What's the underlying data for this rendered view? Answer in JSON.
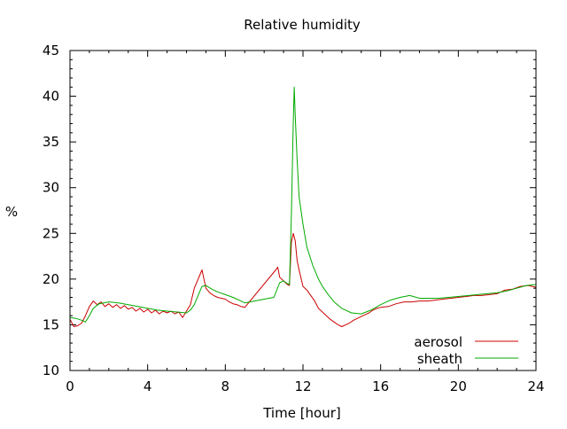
{
  "chart_data": {
    "type": "line",
    "title": "Relative humidity",
    "xlabel": "Time [hour]",
    "ylabel": "%",
    "xlim": [
      0,
      24
    ],
    "ylim": [
      10,
      45
    ],
    "x_ticks": [
      0,
      4,
      8,
      12,
      16,
      20,
      24
    ],
    "y_ticks": [
      10,
      15,
      20,
      25,
      30,
      35,
      40,
      45
    ],
    "x_minor_step": 1,
    "y_minor_step": 1,
    "grid": false,
    "legend_position": "bottom-right",
    "series": [
      {
        "name": "aerosol",
        "color": "#cc0000",
        "x": [
          0,
          0.2,
          0.4,
          0.6,
          0.8,
          1.0,
          1.2,
          1.4,
          1.6,
          1.8,
          2.0,
          2.2,
          2.4,
          2.6,
          2.8,
          3.0,
          3.2,
          3.4,
          3.6,
          3.8,
          4.0,
          4.2,
          4.4,
          4.6,
          4.8,
          5.0,
          5.2,
          5.4,
          5.6,
          5.8,
          6.0,
          6.2,
          6.4,
          6.6,
          6.8,
          7.0,
          7.2,
          7.4,
          7.6,
          7.8,
          8.0,
          8.2,
          8.4,
          8.6,
          8.8,
          9.0,
          10.6,
          10.7,
          10.8,
          10.9,
          11.0,
          11.1,
          11.2,
          11.3,
          11.4,
          11.5,
          11.6,
          11.7,
          11.8,
          12.0,
          12.2,
          12.4,
          12.6,
          12.8,
          13.0,
          13.2,
          13.4,
          13.6,
          13.8,
          14.0,
          14.2,
          14.4,
          14.6,
          14.8,
          15.0,
          15.2,
          15.4,
          15.6,
          15.8,
          16.0,
          16.4,
          16.8,
          17.2,
          17.6,
          18.0,
          18.4,
          18.8,
          19.2,
          19.6,
          20.0,
          20.4,
          20.8,
          21.2,
          21.6,
          22.0,
          22.4,
          22.8,
          23.2,
          23.6,
          24.0
        ],
        "y": [
          15.6,
          14.8,
          14.9,
          15.2,
          16.0,
          17.0,
          17.6,
          17.2,
          17.5,
          17.0,
          17.3,
          16.9,
          17.2,
          16.8,
          17.1,
          16.7,
          16.9,
          16.5,
          16.8,
          16.4,
          16.7,
          16.3,
          16.6,
          16.2,
          16.5,
          16.3,
          16.5,
          16.2,
          16.4,
          15.8,
          16.5,
          17.2,
          19.0,
          20.0,
          21.0,
          19.0,
          18.5,
          18.2,
          18.0,
          17.9,
          17.8,
          17.5,
          17.3,
          17.2,
          17.0,
          16.9,
          21.0,
          21.3,
          20.2,
          20.0,
          19.8,
          19.6,
          19.4,
          19.3,
          24.0,
          25.0,
          24.2,
          22.0,
          21.0,
          19.2,
          18.8,
          18.2,
          17.6,
          16.8,
          16.4,
          16.0,
          15.6,
          15.3,
          15.0,
          14.8,
          15.0,
          15.2,
          15.5,
          15.7,
          15.9,
          16.1,
          16.3,
          16.6,
          16.8,
          16.9,
          17.0,
          17.3,
          17.5,
          17.5,
          17.6,
          17.6,
          17.7,
          17.8,
          17.9,
          18.0,
          18.1,
          18.2,
          18.2,
          18.3,
          18.4,
          18.8,
          18.9,
          19.2,
          19.3,
          19.1
        ]
      },
      {
        "name": "sheath",
        "color": "#00aa00",
        "x": [
          0,
          0.3,
          0.6,
          0.8,
          1.0,
          1.2,
          1.5,
          2.0,
          2.5,
          3.0,
          3.5,
          4.0,
          4.5,
          5.0,
          5.5,
          6.0,
          6.2,
          6.4,
          6.6,
          6.8,
          7.0,
          7.3,
          7.6,
          8.0,
          8.4,
          8.8,
          9.0,
          9.5,
          10.0,
          10.5,
          10.8,
          11.0,
          11.2,
          11.3,
          11.4,
          11.5,
          11.55,
          11.6,
          11.7,
          11.8,
          12.0,
          12.2,
          12.5,
          12.8,
          13.0,
          13.3,
          13.6,
          14.0,
          14.5,
          15.0,
          15.5,
          16.0,
          16.5,
          17.0,
          17.5,
          18.0,
          19.0,
          20.0,
          21.0,
          22.0,
          22.5,
          23.0,
          23.5,
          24.0
        ],
        "y": [
          15.8,
          15.7,
          15.5,
          15.3,
          16.0,
          16.8,
          17.3,
          17.5,
          17.4,
          17.2,
          17.0,
          16.8,
          16.6,
          16.5,
          16.4,
          16.3,
          16.6,
          17.2,
          18.2,
          19.2,
          19.3,
          18.9,
          18.6,
          18.3,
          18.0,
          17.6,
          17.4,
          17.6,
          17.8,
          18.0,
          19.6,
          19.8,
          19.5,
          19.4,
          27.0,
          37.0,
          41.0,
          38.0,
          33.0,
          29.0,
          26.0,
          23.5,
          21.5,
          20.0,
          19.2,
          18.3,
          17.5,
          16.8,
          16.3,
          16.2,
          16.6,
          17.2,
          17.7,
          18.0,
          18.2,
          17.9,
          17.9,
          18.1,
          18.3,
          18.5,
          18.7,
          19.0,
          19.3,
          19.4
        ]
      }
    ]
  }
}
